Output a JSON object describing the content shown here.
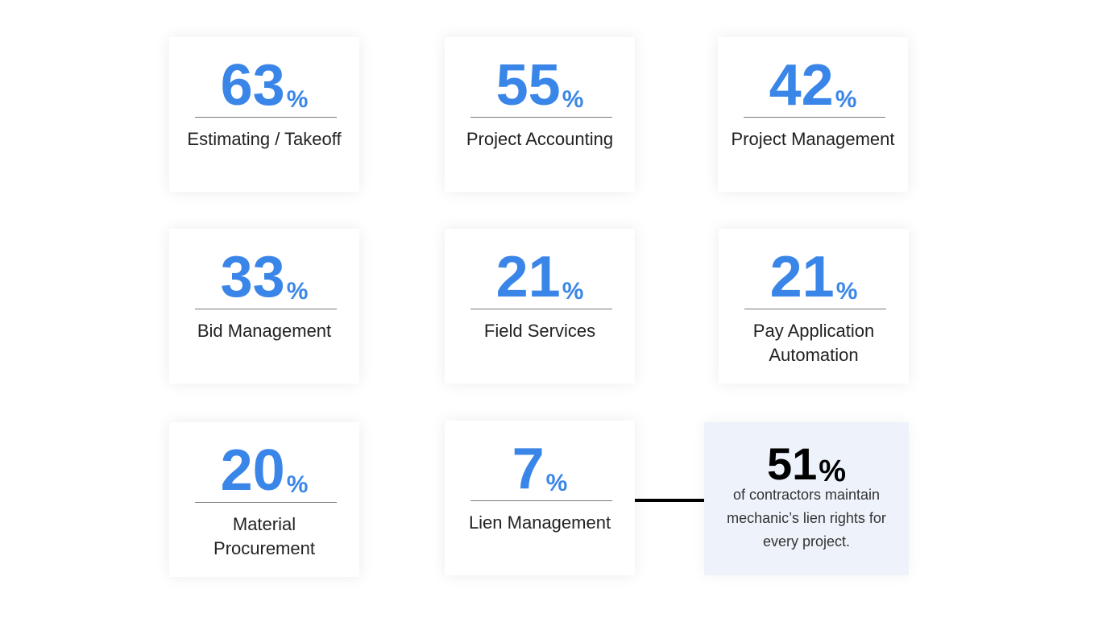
{
  "cards": [
    {
      "value": "63",
      "unit": "%",
      "label": "Estimating / Takeoff"
    },
    {
      "value": "55",
      "unit": "%",
      "label": "Project Accounting"
    },
    {
      "value": "42",
      "unit": "%",
      "label": "Project Management"
    },
    {
      "value": "33",
      "unit": "%",
      "label": "Bid Management"
    },
    {
      "value": "21",
      "unit": "%",
      "label": "Field Services"
    },
    {
      "value": "21",
      "unit": "%",
      "label_line1": "Pay Application",
      "label_line2": "Automation"
    },
    {
      "value": "20",
      "unit": "%",
      "label_line1": "Material",
      "label_line2": "Procurement"
    },
    {
      "value": "7",
      "unit": "%",
      "label": "Lien Management"
    }
  ],
  "highlight": {
    "value": "51",
    "unit": "%",
    "line1": "of contractors maintain",
    "line2": "mechanic’s lien rights for",
    "line3": "every project."
  },
  "colors": {
    "accent": "#3a86e8",
    "highlight_bg": "#eef3fb"
  }
}
